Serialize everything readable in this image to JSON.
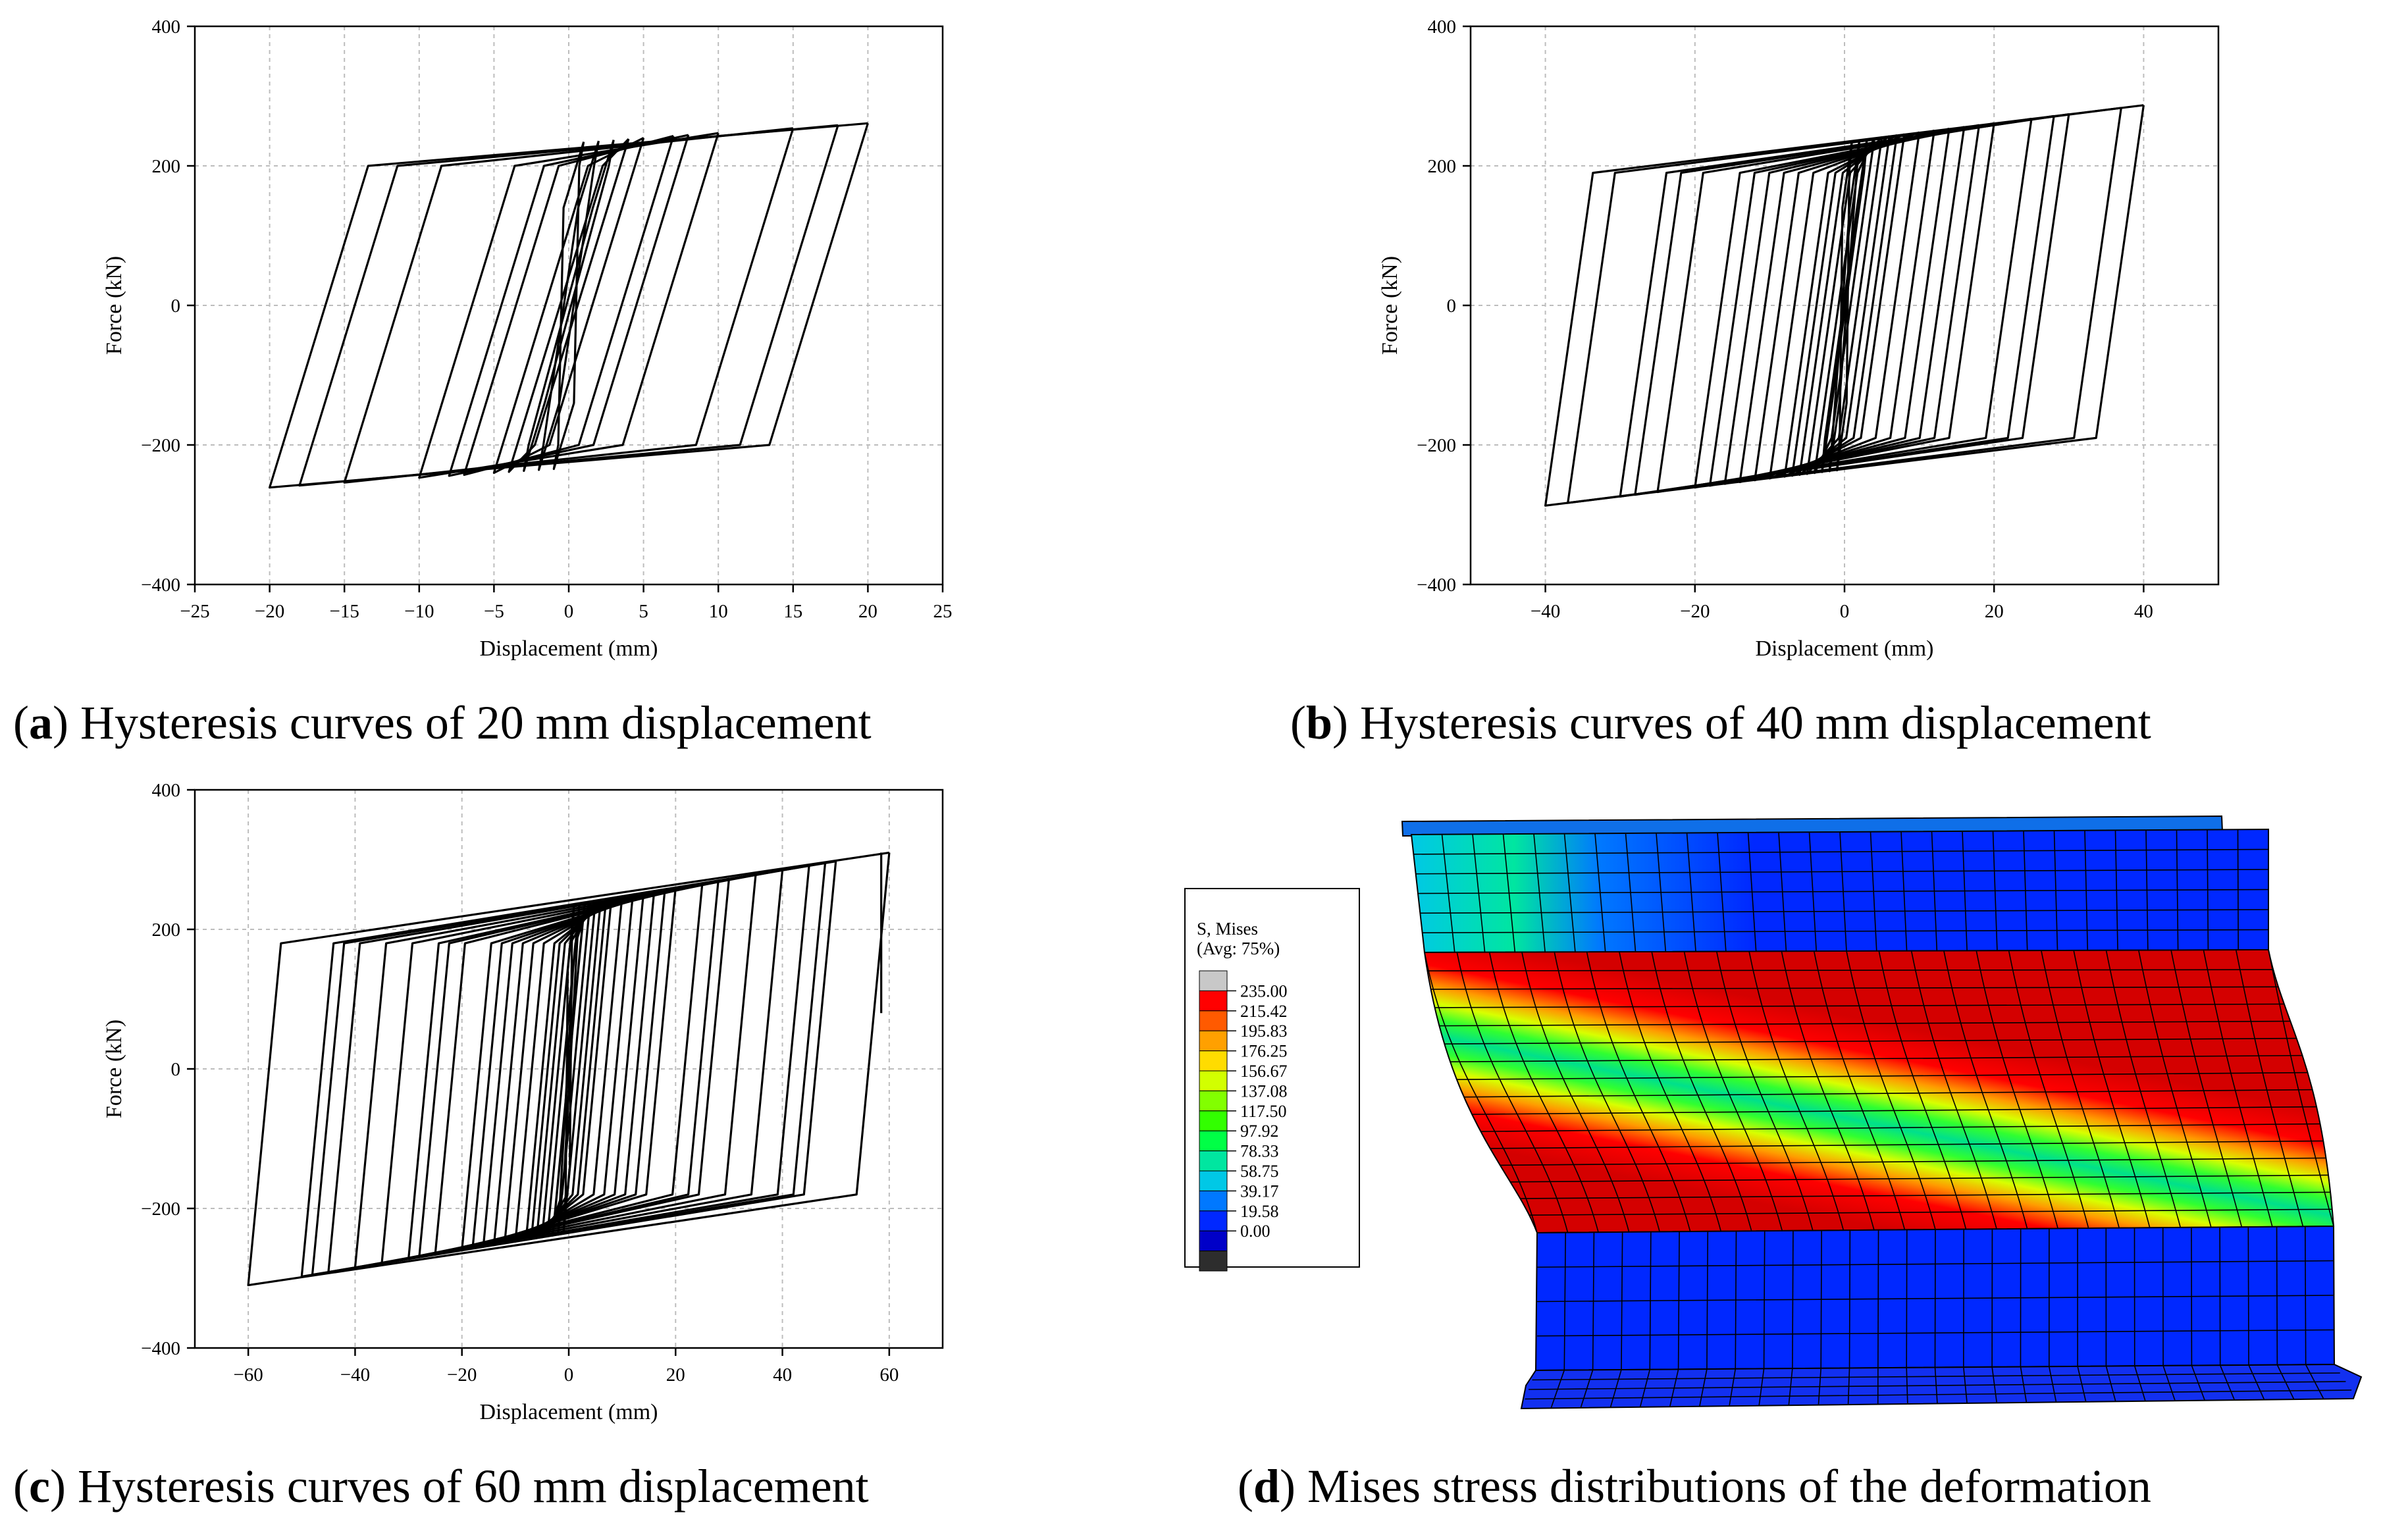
{
  "figure": {
    "colors": {
      "curve": "#000000",
      "grid": "#bdbdbd",
      "frame": "#000000"
    }
  },
  "chart_data": [
    {
      "id": "a",
      "type": "line",
      "title": "",
      "xlabel": "Displacement (mm)",
      "ylabel": "Force (kN)",
      "xlim": [
        -25,
        25
      ],
      "ylim": [
        -400,
        400
      ],
      "xticks": [
        -25,
        -20,
        -15,
        -10,
        -5,
        0,
        5,
        10,
        15,
        20,
        25
      ],
      "yticks": [
        -400,
        -200,
        0,
        200,
        400
      ],
      "grid": true,
      "caption_letter": "a",
      "caption_text": " Hysteresis curves of 20 mm displacement",
      "loop_amplitudes": [
        1,
        2,
        3,
        4,
        5,
        7,
        8,
        10,
        15,
        18,
        20
      ],
      "elastic_stiffness": 70,
      "hardening_slope": 1.4,
      "yield_force": 233,
      "knee_force": 200,
      "series": [
        {
          "name": "Hysteresis curve",
          "color": "#000000"
        }
      ]
    },
    {
      "id": "b",
      "type": "line",
      "title": "",
      "xlabel": "Displacement (mm)",
      "ylabel": "Force (kN)",
      "xlim": [
        -50,
        50
      ],
      "ylim": [
        -400,
        400
      ],
      "xticks": [
        -40,
        -20,
        0,
        20,
        40
      ],
      "yticks": [
        -400,
        -200,
        0,
        200,
        400
      ],
      "grid": true,
      "caption_letter": "b",
      "caption_text": " Hysteresis curves of 40 mm displacement",
      "loop_amplitudes": [
        1,
        2,
        3,
        4,
        5,
        6,
        7,
        8,
        10,
        12,
        14,
        16,
        18,
        20,
        25,
        28,
        30,
        37,
        40
      ],
      "elastic_stiffness": 75,
      "hardening_slope": 1.3,
      "yield_force": 235,
      "knee_force": 190,
      "series": [
        {
          "name": "Hysteresis curve",
          "color": "#000000"
        }
      ]
    },
    {
      "id": "c",
      "type": "line",
      "title": "",
      "xlabel": "Displacement (mm)",
      "ylabel": "Force (kN)",
      "xlim": [
        -70,
        70
      ],
      "ylim": [
        -400,
        400
      ],
      "xticks": [
        -60,
        -40,
        -20,
        0,
        20,
        40,
        60
      ],
      "yticks": [
        -400,
        -200,
        0,
        200,
        400
      ],
      "grid": true,
      "caption_letter": "c",
      "caption_text": " Hysteresis curves of 60 mm displacement",
      "loop_amplitudes": [
        1,
        2,
        3,
        4,
        5,
        6,
        7,
        8,
        10,
        12,
        14,
        16,
        18,
        20,
        25,
        28,
        30,
        35,
        40,
        45,
        48,
        50,
        60
      ],
      "elastic_stiffness": 80,
      "hardening_slope": 1.25,
      "yield_force": 235,
      "knee_force": 180,
      "series": [
        {
          "name": "Hysteresis curve",
          "color": "#000000"
        }
      ]
    }
  ],
  "stress_panel": {
    "caption_letter": "d",
    "caption_text": " Mises stress distributions of the deformation",
    "legend_title_line1": "S, Mises",
    "legend_title_line2": "(Avg: 75%)",
    "legend_values": [
      "235.00",
      "215.42",
      "195.83",
      "176.25",
      "156.67",
      "137.08",
      "117.50",
      "97.92",
      "78.33",
      "58.75",
      "39.17",
      "19.58",
      "0.00"
    ],
    "legend_colors": [
      "#c8c8c8",
      "#ff0000",
      "#ff5a00",
      "#ffa000",
      "#ffdc00",
      "#d2ff00",
      "#82ff00",
      "#32ff00",
      "#00ff46",
      "#00e6a0",
      "#00c8e6",
      "#0078ff",
      "#0028ff",
      "#0000c8",
      "#2d2d2d"
    ]
  }
}
